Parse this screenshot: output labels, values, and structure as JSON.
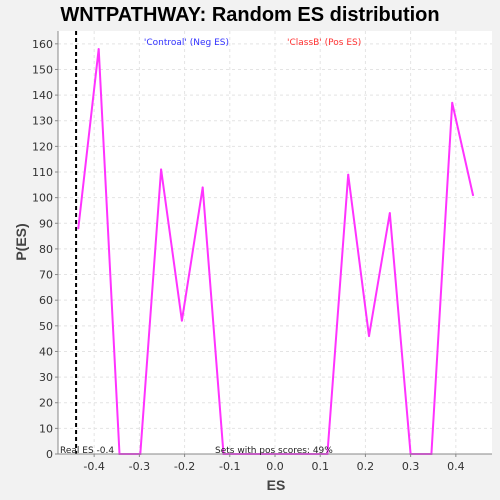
{
  "chart_data": {
    "type": "line",
    "title": "WNTPATHWAY: Random ES distribution",
    "xlabel": "ES",
    "ylabel": "P(ES)",
    "xlim": [
      -0.48,
      0.48
    ],
    "ylim": [
      0,
      165
    ],
    "x_ticks": [
      -0.4,
      -0.3,
      -0.2,
      -0.1,
      0.0,
      0.1,
      0.2,
      0.3,
      0.4
    ],
    "x_tick_labels": [
      "-0.4",
      "-0.3",
      "-0.2",
      "-0.1",
      "0.0",
      "0.1",
      "0.2",
      "0.3",
      "0.4"
    ],
    "y_ticks": [
      0,
      10,
      20,
      30,
      40,
      50,
      60,
      70,
      80,
      90,
      100,
      110,
      120,
      130,
      140,
      150,
      160
    ],
    "grid": true,
    "series": [
      {
        "color": "#ff33ff",
        "x": [
          -0.435,
          -0.39,
          -0.344,
          -0.298,
          -0.252,
          -0.206,
          -0.16,
          -0.114,
          -0.068,
          -0.022,
          0.024,
          0.07,
          0.116,
          0.162,
          0.208,
          0.254,
          0.3,
          0.346,
          0.392,
          0.438
        ],
        "y": [
          88,
          158,
          0,
          0,
          111,
          52,
          104,
          0,
          0,
          0,
          0,
          0,
          0,
          109,
          46,
          94,
          0,
          0,
          137,
          101
        ]
      }
    ],
    "legend": {
      "placement": "top",
      "entries": [
        {
          "label": "'Controal' (Neg ES)",
          "color": "#3333ff"
        },
        {
          "label": "'ClassB' (Pos ES)",
          "color": "#ff3333"
        }
      ]
    },
    "real_es": {
      "value": -0.44,
      "label": "Real ES -0.4"
    },
    "annotation": "Sets with pos scores: 49%"
  }
}
